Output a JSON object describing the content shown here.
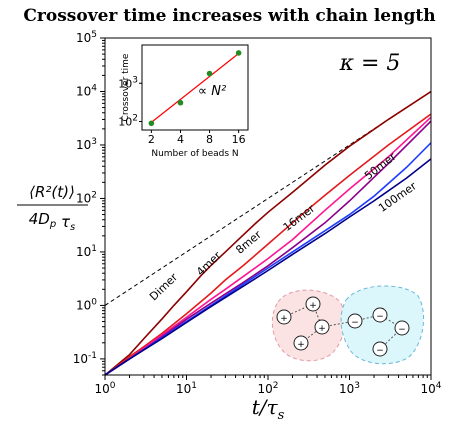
{
  "title": "Crossover time increases with chain length",
  "chart_data": {
    "type": "line",
    "x_scale": "log",
    "y_scale": "log",
    "xlim": [
      1,
      10000
    ],
    "ylim": [
      0.05,
      100000
    ],
    "xlabel": "t/τ_s",
    "ylabel_numer": "⟨R²(t)⟩",
    "ylabel_denom": "4D_p τ_s",
    "x_ticks": [
      {
        "v": 1,
        "l": "10^0"
      },
      {
        "v": 10,
        "l": "10^1"
      },
      {
        "v": 100,
        "l": "10^2"
      },
      {
        "v": 1000,
        "l": "10^3"
      },
      {
        "v": 10000,
        "l": "10^4"
      }
    ],
    "y_ticks": [
      {
        "v": 0.1,
        "l": "10^-1"
      },
      {
        "v": 1,
        "l": "10^0"
      },
      {
        "v": 10,
        "l": "10^1"
      },
      {
        "v": 100,
        "l": "10^2"
      },
      {
        "v": 1000,
        "l": "10^3"
      },
      {
        "v": 10000,
        "l": "10^4"
      },
      {
        "v": 100000,
        "l": "10^5"
      }
    ],
    "annotation": "κ = 5",
    "reference_line": {
      "x": [
        1,
        10000
      ],
      "y": [
        1,
        10000
      ],
      "style": "dashed",
      "color": "#000000"
    },
    "series": [
      {
        "name": "Dimer",
        "color": "#8b0000",
        "x": [
          1,
          2,
          3,
          5,
          7,
          10,
          15,
          20,
          30,
          45,
          70,
          100,
          200,
          500,
          1000,
          3000,
          10000
        ],
        "y": [
          0.05,
          0.12,
          0.24,
          0.56,
          1.0,
          1.8,
          3.6,
          5.6,
          10,
          18,
          34,
          55,
          130,
          420,
          950,
          3000,
          10000
        ]
      },
      {
        "name": "4mer",
        "color": "#e41a1c",
        "x": [
          1,
          2,
          3,
          5,
          10,
          20,
          30,
          50,
          100,
          200,
          300,
          500,
          1000,
          3000,
          10000
        ],
        "y": [
          0.05,
          0.11,
          0.17,
          0.3,
          0.7,
          1.7,
          3.0,
          5.6,
          14,
          35,
          60,
          115,
          270,
          1000,
          3800
        ]
      },
      {
        "name": "8mer",
        "color": "#ff1493",
        "x": [
          1,
          2,
          3,
          5,
          10,
          20,
          30,
          50,
          100,
          200,
          500,
          1000,
          3000,
          10000
        ],
        "y": [
          0.05,
          0.1,
          0.16,
          0.28,
          0.6,
          1.3,
          2.0,
          3.5,
          7.5,
          17,
          60,
          150,
          600,
          3300
        ]
      },
      {
        "name": "16mer",
        "color": "#8b008b",
        "x": [
          1,
          2,
          3,
          5,
          10,
          20,
          50,
          100,
          200,
          500,
          1000,
          3000,
          10000
        ],
        "y": [
          0.05,
          0.1,
          0.15,
          0.26,
          0.55,
          1.1,
          2.7,
          5.5,
          12,
          35,
          90,
          450,
          2800
        ]
      },
      {
        "name": "50mer",
        "color": "#1f3cff",
        "x": [
          1,
          2,
          5,
          10,
          20,
          50,
          100,
          200,
          500,
          1000,
          2000,
          5000,
          10000
        ],
        "y": [
          0.05,
          0.1,
          0.25,
          0.5,
          1.0,
          2.5,
          5,
          10,
          25,
          50,
          110,
          380,
          1100
        ]
      },
      {
        "name": "100mer",
        "color": "#00008b",
        "x": [
          1,
          2,
          5,
          10,
          20,
          50,
          100,
          200,
          500,
          1000,
          2000,
          5000,
          10000
        ],
        "y": [
          0.05,
          0.1,
          0.24,
          0.48,
          0.95,
          2.3,
          4.5,
          9,
          22,
          45,
          90,
          240,
          550
        ]
      }
    ],
    "inset": {
      "type": "scatter",
      "x_scale": "log",
      "y_scale": "log",
      "xlabel": "Number of beads N",
      "ylabel": "Crossover time",
      "x_ticks": [
        2,
        4,
        8,
        16
      ],
      "y_ticks": [
        {
          "v": 100,
          "l": "10^2"
        },
        {
          "v": 1000,
          "l": "10^3"
        }
      ],
      "xlim": [
        1.6,
        20
      ],
      "ylim": [
        60,
        10000
      ],
      "points": {
        "x": [
          2,
          4,
          8,
          16
        ],
        "y": [
          90,
          310,
          1800,
          6200
        ]
      },
      "fit": {
        "x": [
          2,
          16
        ],
        "y": [
          95,
          6000
        ],
        "label": "∝ N²",
        "color": "#ff0000"
      },
      "point_color": "#228b22"
    },
    "schematic": {
      "left_symbol": "+",
      "right_symbol": "−"
    }
  }
}
